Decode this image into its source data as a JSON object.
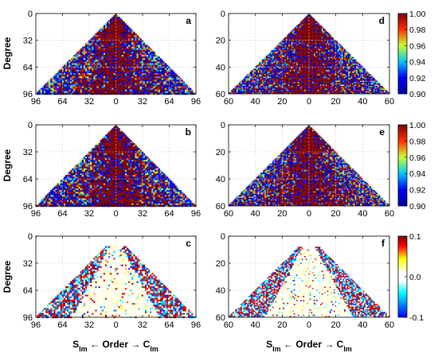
{
  "chart_data": {
    "type": "heatmap",
    "ylabel": "Degree",
    "xlabel_parts": {
      "left_main": "S",
      "left_sub": "lm",
      "middle": " ← Order → ",
      "right_main": "C",
      "right_sub": "lm"
    },
    "panels": [
      {
        "letter": "a",
        "max_degree": 96,
        "x_ticks": [
          "96",
          "64",
          "32",
          "0",
          "32",
          "64",
          "96"
        ],
        "y_ticks": [
          "0",
          "32",
          "64",
          "96"
        ],
        "scale": "top"
      },
      {
        "letter": "b",
        "max_degree": 96,
        "x_ticks": [
          "96",
          "64",
          "32",
          "0",
          "32",
          "64",
          "96"
        ],
        "y_ticks": [
          "0",
          "32",
          "64",
          "96"
        ],
        "scale": "top"
      },
      {
        "letter": "c",
        "max_degree": 96,
        "x_ticks": [
          "96",
          "64",
          "32",
          "0",
          "32",
          "64",
          "96"
        ],
        "y_ticks": [
          "0",
          "32",
          "64",
          "96"
        ],
        "scale": "diff"
      },
      {
        "letter": "d",
        "max_degree": 60,
        "x_ticks": [
          "60",
          "40",
          "20",
          "0",
          "20",
          "40",
          "60"
        ],
        "y_ticks": [
          "0",
          "20",
          "40",
          "60"
        ],
        "scale": "top"
      },
      {
        "letter": "e",
        "max_degree": 60,
        "x_ticks": [
          "60",
          "40",
          "20",
          "0",
          "20",
          "40",
          "60"
        ],
        "y_ticks": [
          "0",
          "20",
          "40",
          "60"
        ],
        "scale": "top"
      },
      {
        "letter": "f",
        "max_degree": 60,
        "x_ticks": [
          "60",
          "40",
          "20",
          "0",
          "20",
          "40",
          "60"
        ],
        "y_ticks": [
          "0",
          "20",
          "40",
          "60"
        ],
        "scale": "diff"
      }
    ],
    "colorbars": [
      {
        "for_panel": "d",
        "range": [
          0.9,
          1.0
        ],
        "ticks": [
          "1.00",
          "0.98",
          "0.96",
          "0.94",
          "0.92",
          "0.90"
        ]
      },
      {
        "for_panel": "e",
        "range": [
          0.9,
          1.0
        ],
        "ticks": [
          "1.00",
          "0.98",
          "0.96",
          "0.94",
          "0.92",
          "0.90"
        ]
      },
      {
        "for_panel": "f",
        "range": [
          -0.1,
          0.1
        ],
        "ticks": [
          "0.1",
          "0.0",
          "-0.1"
        ]
      }
    ],
    "colors": {
      "top_scale": [
        "#00008f",
        "#0000ff",
        "#00ffff",
        "#ffff00",
        "#ff0000",
        "#800000"
      ],
      "diff_scale": [
        "#0000ff",
        "#00ffff",
        "#ffffff",
        "#ffff00",
        "#ff0000",
        "#800000"
      ]
    }
  }
}
